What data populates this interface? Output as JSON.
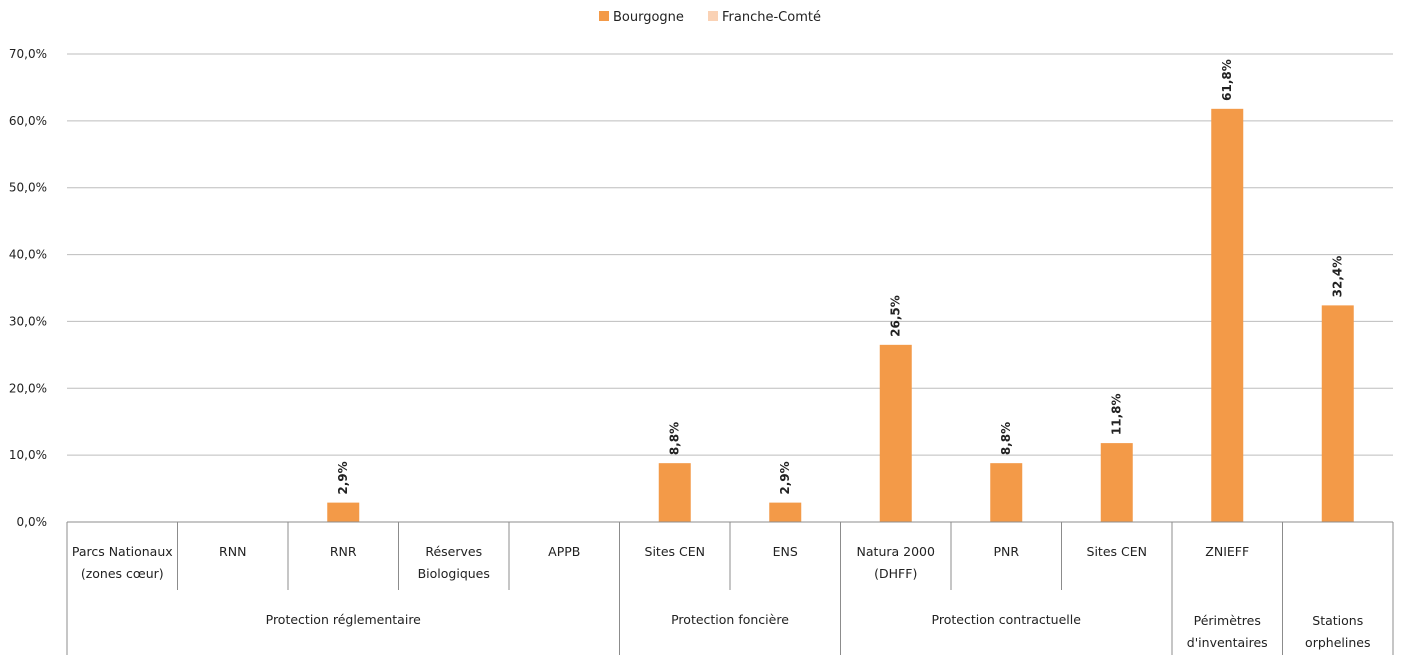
{
  "colors": {
    "bourgogne": "#F39A48",
    "franche_comte": "#FAD2B5",
    "grid": "#BDBDBD",
    "axis": "#8C8C8C"
  },
  "chart_data": {
    "type": "bar",
    "title": "",
    "xlabel": "",
    "ylabel": "",
    "ylim": [
      0,
      70
    ],
    "yticks": [
      "0,0%",
      "10,0%",
      "20,0%",
      "30,0%",
      "40,0%",
      "50,0%",
      "60,0%",
      "70,0%"
    ],
    "grid": true,
    "legend_position": "top-center",
    "categories": [
      [
        "Parcs Nationaux",
        "(zones cœur)"
      ],
      [
        "RNN"
      ],
      [
        "RNR"
      ],
      [
        "Réserves",
        "Biologiques"
      ],
      [
        "APPB"
      ],
      [
        "Sites CEN"
      ],
      [
        "ENS"
      ],
      [
        "Natura 2000",
        "(DHFF)"
      ],
      [
        "PNR"
      ],
      [
        "Sites CEN"
      ],
      [
        "ZNIEFF"
      ],
      [
        ""
      ]
    ],
    "groups": [
      {
        "label": [
          "Protection réglementaire"
        ],
        "span": 5
      },
      {
        "label": [
          "Protection foncière"
        ],
        "span": 2
      },
      {
        "label": [
          "Protection contractuelle"
        ],
        "span": 3
      },
      {
        "label": [
          "Périmètres",
          "d'inventaires"
        ],
        "span": 1
      },
      {
        "label": [
          "Stations",
          "orphelines"
        ],
        "span": 1
      }
    ],
    "series": [
      {
        "name": "Bourgogne",
        "values": [
          null,
          null,
          2.9,
          null,
          null,
          8.8,
          2.9,
          26.5,
          8.8,
          11.8,
          61.8,
          32.4
        ],
        "labels": [
          "",
          "",
          "2,9%",
          "",
          "",
          "8,8%",
          "2,9%",
          "26,5%",
          "8,8%",
          "11,8%",
          "61,8%",
          "32,4%"
        ]
      },
      {
        "name": "Franche-Comté",
        "values": [
          null,
          null,
          null,
          null,
          null,
          null,
          null,
          null,
          null,
          null,
          null,
          null
        ],
        "labels": [
          "",
          "",
          "",
          "",
          "",
          "",
          "",
          "",
          "",
          "",
          "",
          ""
        ]
      }
    ]
  }
}
